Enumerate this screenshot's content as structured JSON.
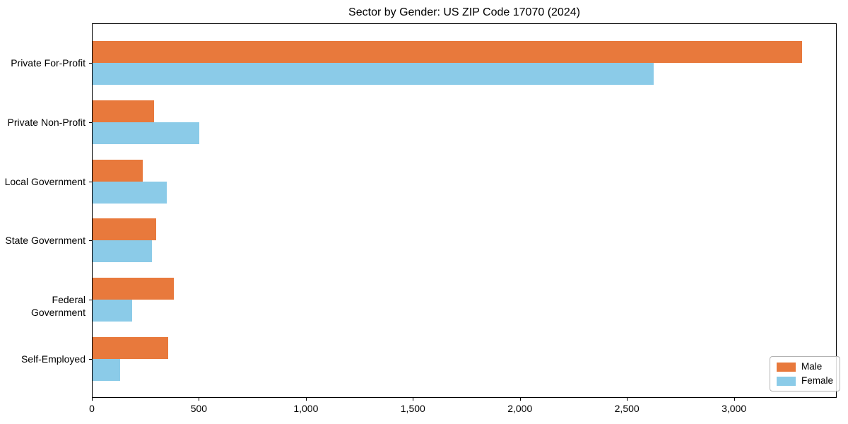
{
  "chart_data": {
    "type": "bar",
    "orientation": "horizontal",
    "title": "Sector by Gender: US ZIP Code 17070 (2024)",
    "categories": [
      "Private For-Profit",
      "Private Non-Profit",
      "Local Government",
      "State Government",
      "Federal Government",
      "Self-Employed"
    ],
    "series": [
      {
        "name": "Male",
        "color": "#E8793C",
        "values": [
          3316,
          288,
          234,
          296,
          380,
          352
        ]
      },
      {
        "name": "Female",
        "color": "#8BCBE8",
        "values": [
          2620,
          500,
          348,
          277,
          184,
          130
        ]
      }
    ],
    "xlabel": "",
    "ylabel": "",
    "x_ticks": [
      0,
      500,
      1000,
      1500,
      2000,
      2500,
      3000
    ],
    "x_tick_labels": [
      "0",
      "500",
      "1,000",
      "1,500",
      "2,000",
      "2,500",
      "3,000"
    ],
    "xlim": [
      0,
      3480
    ],
    "grid": false,
    "legend": {
      "position": "lower right",
      "entries": [
        "Male",
        "Female"
      ]
    },
    "background": "#ffffff"
  }
}
